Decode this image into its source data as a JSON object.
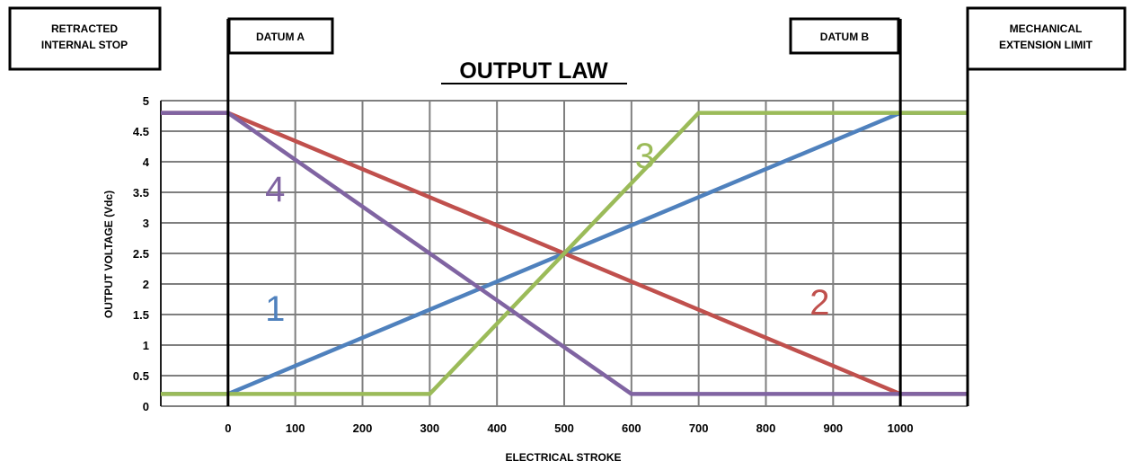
{
  "chart_data": {
    "type": "line",
    "title": "OUTPUT LAW",
    "xlabel": "ELECTRICAL STROKE",
    "ylabel": "OUTPUT VOLTAGE (Vdc)",
    "xlim": [
      -100,
      1100
    ],
    "ylim": [
      0,
      5
    ],
    "x_ticks": [
      0,
      100,
      200,
      300,
      400,
      500,
      600,
      700,
      800,
      900,
      1000
    ],
    "y_ticks": [
      "0",
      "0.5",
      "1",
      "1.5",
      "2",
      "2.5",
      "3",
      "3.5",
      "4",
      "4.5",
      "5"
    ],
    "grid": true,
    "annotations": {
      "retracted": "RETRACTED\nINTERNAL STOP",
      "datum_a": "DATUM A",
      "datum_b": "DATUM B",
      "mechanical": "MECHANICAL\nEXTENSION LIMIT"
    },
    "series": [
      {
        "name": "1",
        "color": "#4F81BD",
        "points": [
          [
            -100,
            0.2
          ],
          [
            0,
            0.2
          ],
          [
            1000,
            4.8
          ],
          [
            1100,
            4.8
          ]
        ]
      },
      {
        "name": "2",
        "color": "#C0504D",
        "points": [
          [
            -100,
            4.8
          ],
          [
            0,
            4.8
          ],
          [
            1000,
            0.2
          ],
          [
            1100,
            0.2
          ]
        ]
      },
      {
        "name": "3",
        "color": "#9BBB59",
        "points": [
          [
            -100,
            0.2
          ],
          [
            300,
            0.2
          ],
          [
            700,
            4.8
          ],
          [
            1100,
            4.8
          ]
        ]
      },
      {
        "name": "4",
        "color": "#8064A2",
        "points": [
          [
            -100,
            4.8
          ],
          [
            0,
            4.8
          ],
          [
            600,
            0.2
          ],
          [
            1100,
            0.2
          ]
        ]
      }
    ]
  }
}
